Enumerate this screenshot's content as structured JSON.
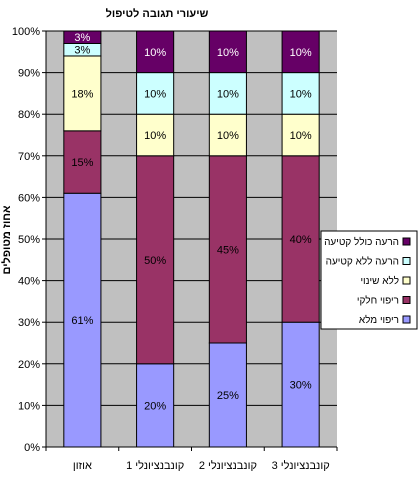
{
  "chart_data": {
    "type": "bar",
    "stacked": true,
    "percent": true,
    "title": "שיעורי תגובה לטיפול",
    "ylabel": "אחוז מטופלים",
    "xlabel": "",
    "ylim": [
      0,
      100
    ],
    "yticks": [
      "0%",
      "10%",
      "20%",
      "30%",
      "40%",
      "50%",
      "60%",
      "70%",
      "80%",
      "90%",
      "100%"
    ],
    "categories": [
      "אוזון",
      "קונבנציונלי 1",
      "קונבנציונלי 2",
      "קונבנציונלי 3"
    ],
    "series": [
      {
        "name": "ריפוי מלא",
        "color": "#9999ff",
        "values": [
          61,
          20,
          25,
          30
        ],
        "labels": [
          "61%",
          "20%",
          "25%",
          "30%"
        ]
      },
      {
        "name": "ריפוי חלקי",
        "color": "#993366",
        "values": [
          15,
          50,
          45,
          40
        ],
        "labels": [
          "15%",
          "50%",
          "45%",
          "40%"
        ]
      },
      {
        "name": "ללא שינוי",
        "color": "#ffffcc",
        "values": [
          18,
          10,
          10,
          10
        ],
        "labels": [
          "18%",
          "10%",
          "10%",
          "10%"
        ]
      },
      {
        "name": "הרעה ללא קטיעה",
        "color": "#ccffff",
        "values": [
          3,
          10,
          10,
          10
        ],
        "labels": [
          "3%",
          "10%",
          "10%",
          "10%"
        ]
      },
      {
        "name": "הרעה כולל קטיעה",
        "color": "#660066",
        "values": [
          3,
          10,
          10,
          10
        ],
        "labels": [
          "3%",
          "10%",
          "10%",
          "10%"
        ]
      }
    ],
    "grid": true,
    "legend_position": "right"
  }
}
